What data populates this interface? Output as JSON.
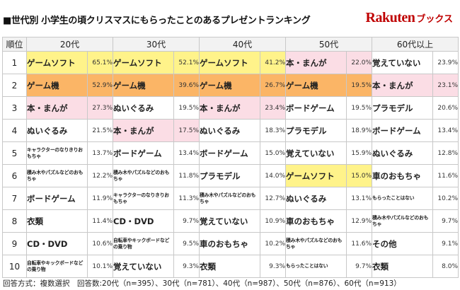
{
  "header": {
    "title": "■世代別 小学生の頃クリスマスにもらったことのあるプレゼントランキング",
    "logo_brand": "Rakuten",
    "logo_sub": "ブックス"
  },
  "table": {
    "rank_header": "順位",
    "columns": [
      {
        "label": "20代",
        "items": [
          {
            "name": "ゲームソフト",
            "pct": "65.1%",
            "hl": "game-soft",
            "small": false
          },
          {
            "name": "ゲーム機",
            "pct": "52.9%",
            "hl": "game-ki",
            "small": false
          },
          {
            "name": "本・まんが",
            "pct": "27.3%",
            "hl": "hon",
            "small": false
          },
          {
            "name": "ぬいぐるみ",
            "pct": "21.5%",
            "hl": "none",
            "small": false
          },
          {
            "name": "キャラクターのなりきりおもちゃ",
            "pct": "13.7%",
            "hl": "none",
            "small": true
          },
          {
            "name": "積み木やパズルなどのおもちゃ",
            "pct": "12.2%",
            "hl": "none",
            "small": true
          },
          {
            "name": "ボードゲーム",
            "pct": "11.9%",
            "hl": "none",
            "small": false
          },
          {
            "name": "衣類",
            "pct": "11.4%",
            "hl": "none",
            "small": false
          },
          {
            "name": "CD・DVD",
            "pct": "10.6%",
            "hl": "none",
            "small": false
          },
          {
            "name": "自転車やキックボードなどの乗り物",
            "pct": "10.1%",
            "hl": "none",
            "small": true
          }
        ]
      },
      {
        "label": "30代",
        "items": [
          {
            "name": "ゲームソフト",
            "pct": "52.1%",
            "hl": "game-soft",
            "small": false
          },
          {
            "name": "ゲーム機",
            "pct": "39.6%",
            "hl": "game-ki",
            "small": false
          },
          {
            "name": "ぬいぐるみ",
            "pct": "19.5%",
            "hl": "none",
            "small": false
          },
          {
            "name": "本・まんが",
            "pct": "17.5%",
            "hl": "hon",
            "small": false
          },
          {
            "name": "ボードゲーム",
            "pct": "13.4%",
            "hl": "none",
            "small": false
          },
          {
            "name": "積み木やパズルなどのおもちゃ",
            "pct": "11.8%",
            "hl": "none",
            "small": true
          },
          {
            "name": "キャラクターのなりきりおもちゃ",
            "pct": "11.3%",
            "hl": "none",
            "small": true
          },
          {
            "name": "CD・DVD",
            "pct": "9.7%",
            "hl": "none",
            "small": false
          },
          {
            "name": "自転車やキックボードなどの乗り物",
            "pct": "9.5%",
            "hl": "none",
            "small": true
          },
          {
            "name": "覚えていない",
            "pct": "9.3%",
            "hl": "none",
            "small": false
          }
        ]
      },
      {
        "label": "40代",
        "items": [
          {
            "name": "ゲームソフト",
            "pct": "41.2%",
            "hl": "game-soft",
            "small": false
          },
          {
            "name": "ゲーム機",
            "pct": "26.7%",
            "hl": "game-ki",
            "small": false
          },
          {
            "name": "本・まんが",
            "pct": "23.4%",
            "hl": "hon",
            "small": false
          },
          {
            "name": "ぬいぐるみ",
            "pct": "18.3%",
            "hl": "none",
            "small": false
          },
          {
            "name": "ボードゲーム",
            "pct": "15.0%",
            "hl": "none",
            "small": false
          },
          {
            "name": "プラモデル",
            "pct": "14.0%",
            "hl": "none",
            "small": false
          },
          {
            "name": "積み木やパズルなどのおもちゃ",
            "pct": "12.7%",
            "hl": "none",
            "small": true
          },
          {
            "name": "覚えていない",
            "pct": "10.9%",
            "hl": "none",
            "small": false
          },
          {
            "name": "車のおもちゃ",
            "pct": "10.2%",
            "hl": "none",
            "small": false
          },
          {
            "name": "衣類",
            "pct": "9.3%",
            "hl": "none",
            "small": false
          }
        ]
      },
      {
        "label": "50代",
        "items": [
          {
            "name": "本・まんが",
            "pct": "22.0%",
            "hl": "hon",
            "small": false
          },
          {
            "name": "ゲーム機",
            "pct": "19.5%",
            "hl": "game-ki",
            "small": false
          },
          {
            "name": "ボードゲーム",
            "pct": "19.5%",
            "hl": "none",
            "small": false
          },
          {
            "name": "プラモデル",
            "pct": "18.9%",
            "hl": "none",
            "small": false
          },
          {
            "name": "覚えていない",
            "pct": "15.9%",
            "hl": "none",
            "small": false
          },
          {
            "name": "ゲームソフト",
            "pct": "15.0%",
            "hl": "game-soft",
            "small": false
          },
          {
            "name": "ぬいぐるみ",
            "pct": "13.1%",
            "hl": "none",
            "small": false
          },
          {
            "name": "車のおもちゃ",
            "pct": "12.9%",
            "hl": "none",
            "small": false
          },
          {
            "name": "積み木やパズルなどのおもちゃ",
            "pct": "11.6%",
            "hl": "none",
            "small": true
          },
          {
            "name": "もらったことはない",
            "pct": "9.7%",
            "hl": "none",
            "small": true
          }
        ]
      },
      {
        "label": "60代以上",
        "items": [
          {
            "name": "覚えていない",
            "pct": "23.9%",
            "hl": "none",
            "small": false
          },
          {
            "name": "本・まんが",
            "pct": "23.1%",
            "hl": "hon",
            "small": false
          },
          {
            "name": "プラモデル",
            "pct": "20.6%",
            "hl": "none",
            "small": false
          },
          {
            "name": "ボードゲーム",
            "pct": "13.4%",
            "hl": "none",
            "small": false
          },
          {
            "name": "ぬいぐるみ",
            "pct": "12.8%",
            "hl": "none",
            "small": false
          },
          {
            "name": "車のおもちゃ",
            "pct": "11.6%",
            "hl": "none",
            "small": false
          },
          {
            "name": "もらったことはない",
            "pct": "10.2%",
            "hl": "none",
            "small": true
          },
          {
            "name": "積み木やパズルなどのおもちゃ",
            "pct": "9.7%",
            "hl": "none",
            "small": true
          },
          {
            "name": "その他",
            "pct": "9.1%",
            "hl": "none",
            "small": false
          },
          {
            "name": "衣類",
            "pct": "8.0%",
            "hl": "none",
            "small": false
          }
        ]
      }
    ],
    "ranks": [
      "1",
      "2",
      "3",
      "4",
      "5",
      "6",
      "7",
      "8",
      "9",
      "10"
    ]
  },
  "footer": {
    "text": "回答方式：複数選択　回答数:20代（n=395）、30代（n=781）、40代（n=987）、50代（n=876）、60代（n=913）"
  }
}
